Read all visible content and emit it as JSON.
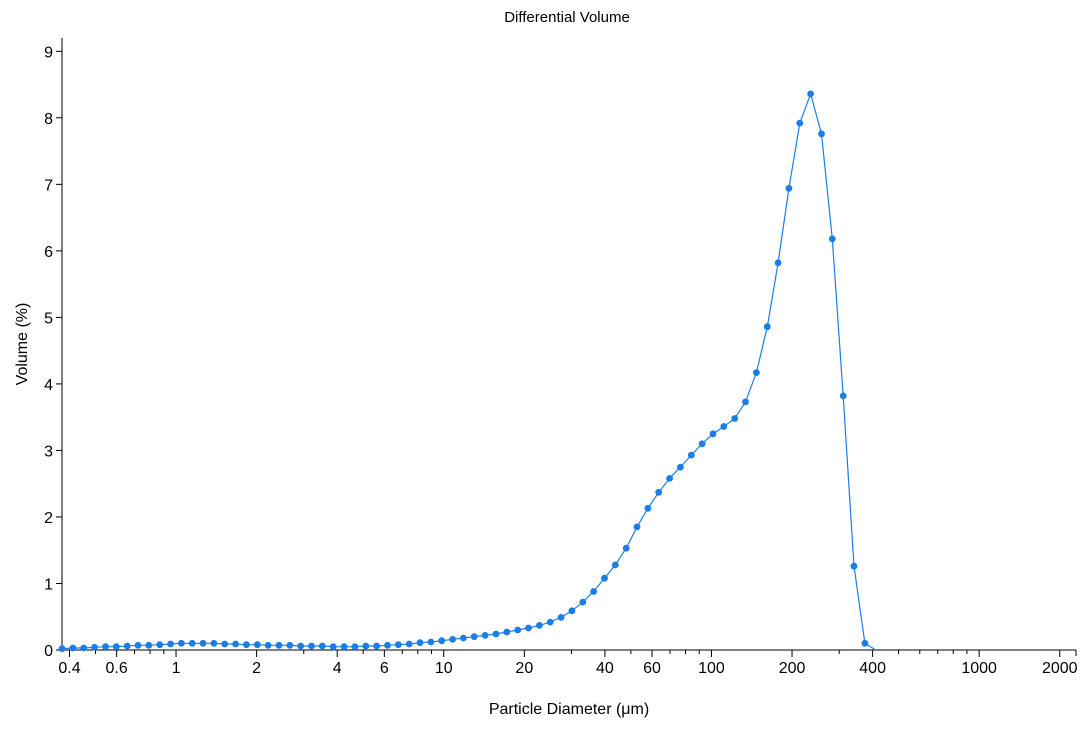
{
  "chart_data": {
    "type": "line",
    "title": "Differential Volume",
    "xlabel": "Particle Diameter (μm)",
    "ylabel": "Volume (%)",
    "x_scale": "log",
    "xlim": [
      0.375,
      2300
    ],
    "ylim": [
      0,
      9.2
    ],
    "grid": false,
    "legend": "none",
    "series_color": "#1a7ee6",
    "x_ticks": [
      {
        "value": 0.4,
        "label": "0.4"
      },
      {
        "value": 0.6,
        "label": "0.6"
      },
      {
        "value": 1,
        "label": "1"
      },
      {
        "value": 2,
        "label": "2"
      },
      {
        "value": 4,
        "label": "4"
      },
      {
        "value": 6,
        "label": "6"
      },
      {
        "value": 10,
        "label": "10"
      },
      {
        "value": 20,
        "label": "20"
      },
      {
        "value": 40,
        "label": "40"
      },
      {
        "value": 60,
        "label": "60"
      },
      {
        "value": 100,
        "label": "100"
      },
      {
        "value": 200,
        "label": "200"
      },
      {
        "value": 400,
        "label": "400"
      },
      {
        "value": 1000,
        "label": "1000"
      },
      {
        "value": 2000,
        "label": "2000"
      }
    ],
    "x_minor_ticks": [
      0.5,
      0.7,
      0.8,
      0.9,
      3,
      5,
      7,
      8,
      9,
      30,
      50,
      70,
      80,
      90,
      300,
      500,
      600,
      700,
      800,
      900
    ],
    "y_ticks": [
      {
        "value": 0,
        "label": "0"
      },
      {
        "value": 1,
        "label": "1"
      },
      {
        "value": 2,
        "label": "2"
      },
      {
        "value": 3,
        "label": "3"
      },
      {
        "value": 4,
        "label": "4"
      },
      {
        "value": 5,
        "label": "5"
      },
      {
        "value": 6,
        "label": "6"
      },
      {
        "value": 7,
        "label": "7"
      },
      {
        "value": 8,
        "label": "8"
      },
      {
        "value": 9,
        "label": "9"
      }
    ],
    "series": [
      {
        "x": [
          0.375,
          0.412,
          0.452,
          0.496,
          0.545,
          0.598,
          0.657,
          0.721,
          0.791,
          0.869,
          0.954,
          1.047,
          1.149,
          1.261,
          1.385,
          1.52,
          1.669,
          1.832,
          2.011,
          2.208,
          2.424,
          2.661,
          2.921,
          3.207,
          3.52,
          3.865,
          4.243,
          4.658,
          5.113,
          5.613,
          6.163,
          6.765,
          7.427,
          8.153,
          8.951,
          9.826,
          10.79,
          11.84,
          13.0,
          14.27,
          15.67,
          17.2,
          18.89,
          20.73,
          22.76,
          24.99,
          27.43,
          30.12,
          33.06,
          36.3,
          39.85,
          43.74,
          48.02,
          52.72,
          57.88,
          63.54,
          69.75,
          76.57,
          84.06,
          92.28,
          101.3,
          111.2,
          122.1,
          134.0,
          147.2,
          161.6,
          177.4,
          194.7,
          213.8,
          234.7,
          257.6,
          282.8,
          310.5,
          340.9,
          374.2,
          410.8
        ],
        "y": [
          0.02,
          0.03,
          0.03,
          0.04,
          0.05,
          0.05,
          0.06,
          0.07,
          0.07,
          0.08,
          0.09,
          0.1,
          0.1,
          0.1,
          0.1,
          0.09,
          0.09,
          0.08,
          0.08,
          0.07,
          0.07,
          0.07,
          0.06,
          0.06,
          0.06,
          0.05,
          0.05,
          0.05,
          0.06,
          0.06,
          0.07,
          0.08,
          0.09,
          0.11,
          0.12,
          0.14,
          0.16,
          0.18,
          0.2,
          0.22,
          0.24,
          0.27,
          0.3,
          0.33,
          0.37,
          0.42,
          0.49,
          0.59,
          0.72,
          0.88,
          1.08,
          1.28,
          1.53,
          1.85,
          2.13,
          2.37,
          2.58,
          2.75,
          2.93,
          3.1,
          3.25,
          3.36,
          3.48,
          3.73,
          4.17,
          4.86,
          5.82,
          6.94,
          7.92,
          8.36,
          7.76,
          6.18,
          3.82,
          1.26,
          0.1,
          0.0
        ]
      }
    ]
  }
}
